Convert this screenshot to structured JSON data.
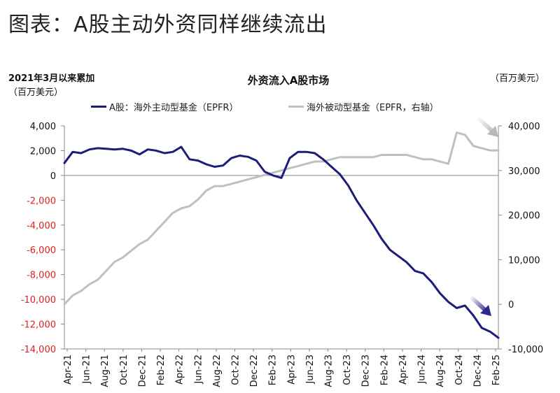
{
  "headline": "图表：A股主动外资同样继续流出",
  "chart_data": {
    "type": "line",
    "title": "外资流入A股市场",
    "left_axis_note_line1": "2021年3月以来累加",
    "left_axis_note_line2": "（百万美元）",
    "right_axis_note": "（百万美元）",
    "ylim_left": [
      -14000,
      4000
    ],
    "ylim_right": [
      -10000,
      40000
    ],
    "left_ticks": [
      4000,
      2000,
      0,
      -2000,
      -4000,
      -6000,
      -8000,
      -10000,
      -12000,
      -14000
    ],
    "left_tick_labels": [
      "4,000",
      "2,000",
      "0",
      "-2,000",
      "-4,000",
      "-6,000",
      "-8,000",
      "-10,000",
      "-12,000",
      "-14,000"
    ],
    "right_ticks": [
      40000,
      30000,
      20000,
      10000,
      0,
      -10000
    ],
    "right_tick_labels": [
      "40,000",
      "30,000",
      "20,000",
      "10,000",
      "0",
      "-10,000"
    ],
    "x_tick_labels": [
      "Apr-21",
      "Jun-21",
      "Aug-21",
      "Oct-21",
      "Dec-21",
      "Feb-22",
      "Apr-22",
      "Jun-22",
      "Aug-22",
      "Oct-22",
      "Dec-22",
      "Feb-23",
      "Apr-23",
      "Jun-23",
      "Aug-23",
      "Oct-23",
      "Dec-23",
      "Feb-24",
      "Apr-24",
      "Jun-24",
      "Aug-24",
      "Oct-24",
      "Dec-24",
      "Feb-25"
    ],
    "colors": {
      "active": "#1c1c7a",
      "passive": "#c0c0c0",
      "negative_tick": "#e02020",
      "arrow": "#2a2a8a"
    },
    "series": [
      {
        "name": "A股：海外主动型基金（EPFR）",
        "axis": "left",
        "color": "#1c1c7a",
        "values": [
          1000,
          1900,
          1800,
          2100,
          2200,
          2150,
          2100,
          2150,
          2000,
          1700,
          2100,
          2000,
          1800,
          1900,
          2300,
          1300,
          1200,
          900,
          700,
          800,
          1400,
          1600,
          1500,
          1200,
          300,
          0,
          -200,
          1400,
          1900,
          1900,
          1800,
          1300,
          700,
          100,
          -800,
          -2000,
          -3000,
          -4000,
          -5100,
          -6000,
          -6500,
          -7000,
          -7700,
          -7900,
          -8600,
          -9500,
          -10200,
          -10700,
          -10500,
          -11300,
          -12300,
          -12600,
          -13100
        ]
      },
      {
        "name": "海外被动型基金（EPFR，右轴）",
        "axis": "right",
        "color": "#c0c0c0",
        "values": [
          0,
          2000,
          3000,
          4500,
          5500,
          7500,
          9500,
          10500,
          12000,
          13500,
          14500,
          16500,
          18500,
          20500,
          21500,
          22000,
          23500,
          25500,
          26500,
          26500,
          27000,
          27500,
          28000,
          28500,
          29000,
          29500,
          30000,
          30500,
          31000,
          31500,
          32000,
          32000,
          32500,
          33000,
          33000,
          33000,
          33000,
          33000,
          33500,
          33500,
          33500,
          33500,
          33000,
          32500,
          32500,
          32000,
          31500,
          38500,
          38000,
          35500,
          35000,
          34500,
          34500
        ]
      }
    ]
  }
}
